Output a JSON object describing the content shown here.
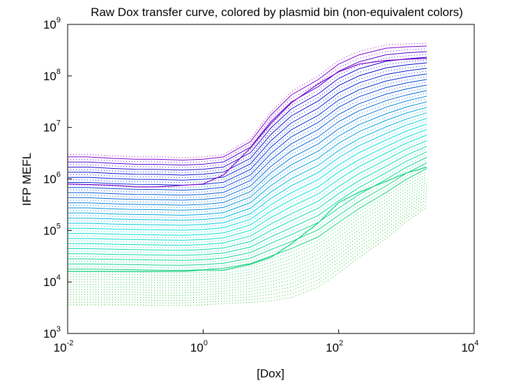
{
  "chart_data": {
    "type": "line",
    "title": "Raw Dox transfer curve, colored by plasmid bin (non-equivalent colors)",
    "xlabel": "[Dox]",
    "ylabel": "IFP MEFL",
    "xscale": "log",
    "yscale": "log",
    "xlim": [
      0.01,
      10000
    ],
    "ylim": [
      1000,
      1000000000
    ],
    "grid": false,
    "x_ticks": [
      {
        "base": "10",
        "exp": "-2"
      },
      {
        "base": "10",
        "exp": "0"
      },
      {
        "base": "10",
        "exp": "2"
      },
      {
        "base": "10",
        "exp": "4"
      }
    ],
    "y_ticks": [
      {
        "base": "10",
        "exp": "3"
      },
      {
        "base": "10",
        "exp": "4"
      },
      {
        "base": "10",
        "exp": "5"
      },
      {
        "base": "10",
        "exp": "6"
      },
      {
        "base": "10",
        "exp": "7"
      },
      {
        "base": "10",
        "exp": "8"
      },
      {
        "base": "10",
        "exp": "9"
      }
    ],
    "x": [
      0.01,
      0.02,
      0.05,
      0.1,
      0.2,
      0.5,
      1,
      2,
      5,
      10,
      20,
      50,
      100,
      200,
      500,
      1000,
      2000
    ],
    "colormap": {
      "from": "#22c022",
      "mid": "#00e0e0",
      "to": "#0000cc",
      "top": "#9900cc"
    },
    "bin_count": 60,
    "solid_bins": [
      14,
      58
    ],
    "series_low_y": [
      3600,
      3600,
      3600,
      3600,
      3500,
      3500,
      3600,
      3800,
      4000,
      4300,
      5000,
      8000,
      15000,
      30000,
      70000,
      150000,
      280000
    ],
    "series_high_y": [
      3000000,
      3000000,
      2800000,
      2700000,
      2700000,
      2600000,
      2700000,
      3000000,
      6000000,
      20000000,
      50000000,
      100000000,
      200000000,
      300000000,
      400000000,
      420000000,
      430000000
    ],
    "early_bins_upper_y": [
      2000000,
      3800000,
      9000000,
      40000000,
      100000000
    ],
    "sample_solid_bins": [
      {
        "bin": 58,
        "y": [
          800000,
          780000,
          750000,
          700000,
          700000,
          750000,
          800000,
          1200000,
          4000000,
          12000000,
          30000000,
          70000000,
          120000000,
          170000000,
          200000000,
          210000000,
          220000000
        ]
      },
      {
        "bin": 14,
        "y": [
          16000,
          16000,
          16000,
          16000,
          16000,
          16000,
          17000,
          17000,
          22000,
          30000,
          55000,
          140000,
          350000,
          550000,
          900000,
          1300000,
          1700000
        ]
      }
    ]
  }
}
